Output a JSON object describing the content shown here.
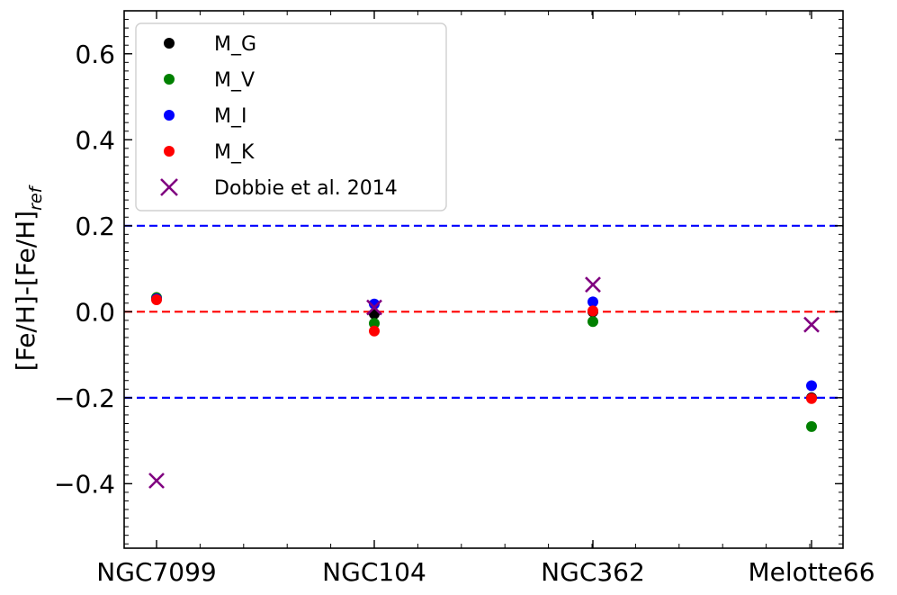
{
  "chart_data": {
    "type": "scatter",
    "categories": [
      "NGC7099",
      "NGC104",
      "NGC362",
      "Melotte66"
    ],
    "ylabel": {
      "main": "[Fe/H]-[Fe/H]",
      "sub": "ref"
    },
    "ylim": [
      -0.55,
      0.7
    ],
    "yticks": [
      -0.4,
      -0.2,
      0.0,
      0.2,
      0.4,
      0.6
    ],
    "ytick_labels": [
      "−0.4",
      "−0.2",
      "0.0",
      "0.2",
      "0.4",
      "0.6"
    ],
    "series": [
      {
        "name": "M_G",
        "marker": "circle",
        "color": "#000000",
        "values": [
          0.03,
          -0.005,
          0.0,
          -0.2
        ]
      },
      {
        "name": "M_V",
        "marker": "circle",
        "color": "#008000",
        "values": [
          0.033,
          -0.027,
          -0.023,
          -0.267
        ]
      },
      {
        "name": "M_I",
        "marker": "circle",
        "color": "#0000ff",
        "values": [
          0.03,
          0.018,
          0.023,
          -0.172
        ]
      },
      {
        "name": "M_K",
        "marker": "circle",
        "color": "#ff0000",
        "values": [
          0.028,
          -0.045,
          0.002,
          -0.202
        ]
      },
      {
        "name": "Dobbie et al. 2014",
        "marker": "x",
        "color": "#800080",
        "values": [
          -0.393,
          0.01,
          0.063,
          -0.03
        ]
      }
    ],
    "reference_lines": [
      {
        "y": 0.2,
        "color": "#0000ff",
        "style": "dashed"
      },
      {
        "y": 0.0,
        "color": "#ff0000",
        "style": "dashed"
      },
      {
        "y": -0.2,
        "color": "#0000ff",
        "style": "dashed"
      }
    ],
    "legend_position": "top-left",
    "grid": false
  }
}
